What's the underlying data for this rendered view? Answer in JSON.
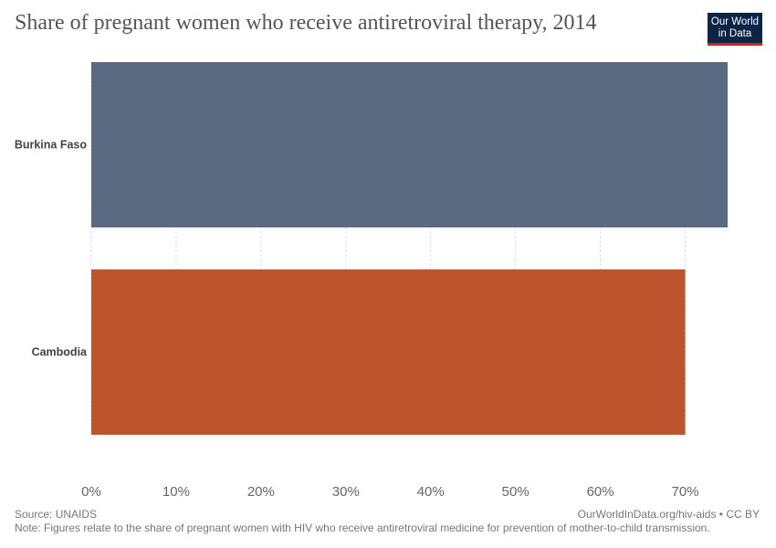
{
  "header": {
    "title": "Share of pregnant women who receive antiretroviral therapy, 2014",
    "logo_line1": "Our World",
    "logo_line2": "in Data"
  },
  "footer": {
    "source": "Source: UNAIDS",
    "url_license": "OurWorldInData.org/hiv-aids • CC BY",
    "note": "Note: Figures relate to the share of pregnant women with HIV who receive antiretroviral medicine for prevention of mother-to-child transmission."
  },
  "chart_data": {
    "type": "bar",
    "orientation": "horizontal",
    "title": "Share of pregnant women who receive antiretroviral therapy, 2014",
    "xlabel": "",
    "ylabel": "",
    "categories": [
      "Burkina Faso",
      "Cambodia"
    ],
    "values": [
      75,
      70
    ],
    "colors": [
      "#5a6a80",
      "#bc552e"
    ],
    "xlim": [
      0,
      75
    ],
    "xticks": [
      0,
      10,
      20,
      30,
      40,
      50,
      60,
      70
    ],
    "tick_format": "percent",
    "grid": "vertical dotted"
  }
}
